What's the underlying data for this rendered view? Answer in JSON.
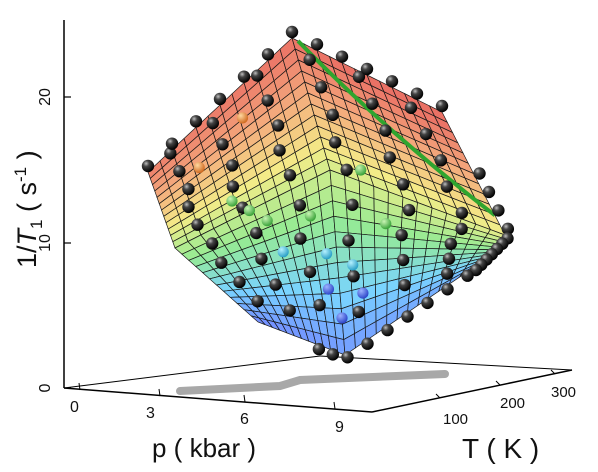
{
  "chart_data": {
    "type": "surface",
    "z_axis": {
      "label_parts": [
        "1/",
        "T",
        "1",
        "  (  s",
        "-1",
        "  )"
      ],
      "ticks": [
        "0",
        "10",
        "20"
      ],
      "range": [
        0,
        25
      ]
    },
    "x_axis": {
      "label": "p ( kbar )",
      "ticks": [
        "0",
        "3",
        "6",
        "9"
      ],
      "range": [
        0,
        10
      ]
    },
    "y_axis": {
      "label": "T ( K )",
      "ticks": [
        "100",
        "200",
        "300"
      ],
      "range": [
        0,
        300
      ]
    },
    "surface": {
      "colormap": [
        "#3d5cff",
        "#46c3ff",
        "#6de36a",
        "#f0e45a",
        "#f08a4a",
        "#e23a2a"
      ],
      "grid": "on",
      "ridge_color": "#2fa52f"
    },
    "points_shadow_color": "#999999",
    "marker_style": "black spheres (measured), colored spheres (inner points)"
  }
}
